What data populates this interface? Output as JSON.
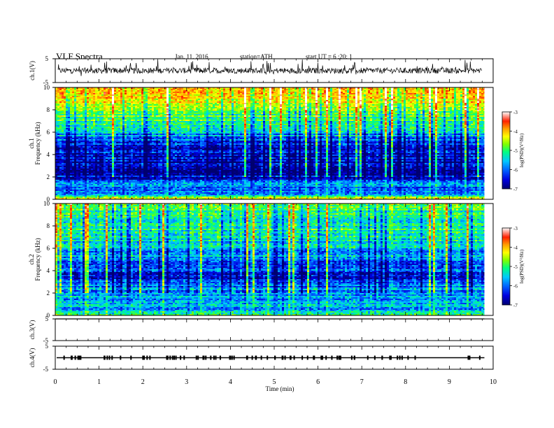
{
  "header": {
    "title": "VLF  Spectra",
    "date": "Jan. 11, 2016",
    "station": "station=ATH",
    "start": "start  UT =   6 :20: 1"
  },
  "colors": {
    "spectrogram_scale": [
      "#000070",
      "#0000e0",
      "#0060ff",
      "#00c8ff",
      "#00ff80",
      "#80ff00",
      "#ffff00",
      "#ffa000",
      "#ff2000",
      "#ffffff"
    ]
  },
  "chart_data": [
    {
      "type": "line",
      "name": "ch1-waveform",
      "ylabel": "ch.1(V)",
      "yticks": [
        "5",
        "-5"
      ],
      "ylim": [
        -5,
        5
      ],
      "x": [
        0,
        1,
        2,
        3,
        4,
        5,
        6,
        7,
        8,
        9,
        9.8
      ],
      "y": [
        0,
        0,
        0,
        0,
        0,
        0,
        0,
        0,
        0,
        0,
        0
      ]
    },
    {
      "type": "heatmap",
      "name": "ch1-spectrogram",
      "ylabel": "ch.1\nFrequency (kHz)",
      "yticks": [
        "0",
        "2",
        "4",
        "6",
        "8",
        "10"
      ],
      "ylim": [
        0,
        10
      ],
      "xlim": [
        0,
        9.8
      ],
      "zlabel": "log(PSD)(V²/Hz)",
      "zticks": [
        "-3",
        "-4",
        "-5",
        "-6",
        "-7"
      ],
      "zlim": [
        -7,
        -3
      ],
      "freq_profile_khz": [
        0,
        0.5,
        1,
        1.5,
        2,
        2.5,
        3,
        3.5,
        4,
        4.5,
        5,
        5.5,
        6,
        6.5,
        7,
        7.5,
        8,
        8.5,
        9,
        9.5,
        10
      ],
      "psd_profile": [
        -4.2,
        -6.3,
        -5.9,
        -6.1,
        -6.6,
        -6.8,
        -6.8,
        -6.7,
        -6.5,
        -6.5,
        -6.2,
        -6.0,
        -5.7,
        -5.4,
        -5.1,
        -4.9,
        -4.6,
        -4.4,
        -4.2,
        -4.1,
        -4.0
      ]
    },
    {
      "type": "heatmap",
      "name": "ch2-spectrogram",
      "ylabel": "ch.2\nFrequency (kHz)",
      "yticks": [
        "0",
        "2",
        "4",
        "6",
        "8",
        "10"
      ],
      "ylim": [
        0,
        10
      ],
      "xlim": [
        0,
        9.8
      ],
      "zlabel": "log(PSD)(V²/Hz)",
      "zticks": [
        "-3",
        "-4",
        "-5",
        "-6",
        "-7"
      ],
      "zlim": [
        -7,
        -3
      ],
      "freq_profile_khz": [
        0,
        0.5,
        1,
        1.5,
        2,
        2.5,
        3,
        3.5,
        4,
        4.5,
        5,
        5.5,
        6,
        6.5,
        7,
        7.5,
        8,
        8.5,
        9,
        9.5,
        10
      ],
      "psd_profile": [
        -4.5,
        -6.2,
        -5.6,
        -5.8,
        -5.9,
        -6.0,
        -6.2,
        -6.7,
        -6.2,
        -6.1,
        -5.9,
        -5.8,
        -5.7,
        -5.5,
        -5.4,
        -5.3,
        -5.3,
        -5.2,
        -5.3,
        -5.2,
        -5.1
      ]
    },
    {
      "type": "line",
      "name": "ch3-waveform",
      "ylabel": "ch.3(V)",
      "yticks": [
        "5",
        "-5"
      ],
      "ylim": [
        -5,
        5
      ],
      "x": [
        0,
        9.8
      ],
      "y": [
        5,
        5
      ]
    },
    {
      "type": "line",
      "name": "ch4-waveform",
      "ylabel": "ch.4(V)",
      "yticks": [
        "5",
        "-5"
      ],
      "ylim": [
        -5,
        5
      ],
      "x": [
        0,
        9.8
      ],
      "y": [
        0,
        0
      ]
    }
  ],
  "xaxis": {
    "label": "Time  (min)",
    "ticks": [
      "0",
      "1",
      "2",
      "3",
      "4",
      "5",
      "6",
      "7",
      "8",
      "9",
      "10"
    ],
    "xlim": [
      0,
      10
    ]
  }
}
